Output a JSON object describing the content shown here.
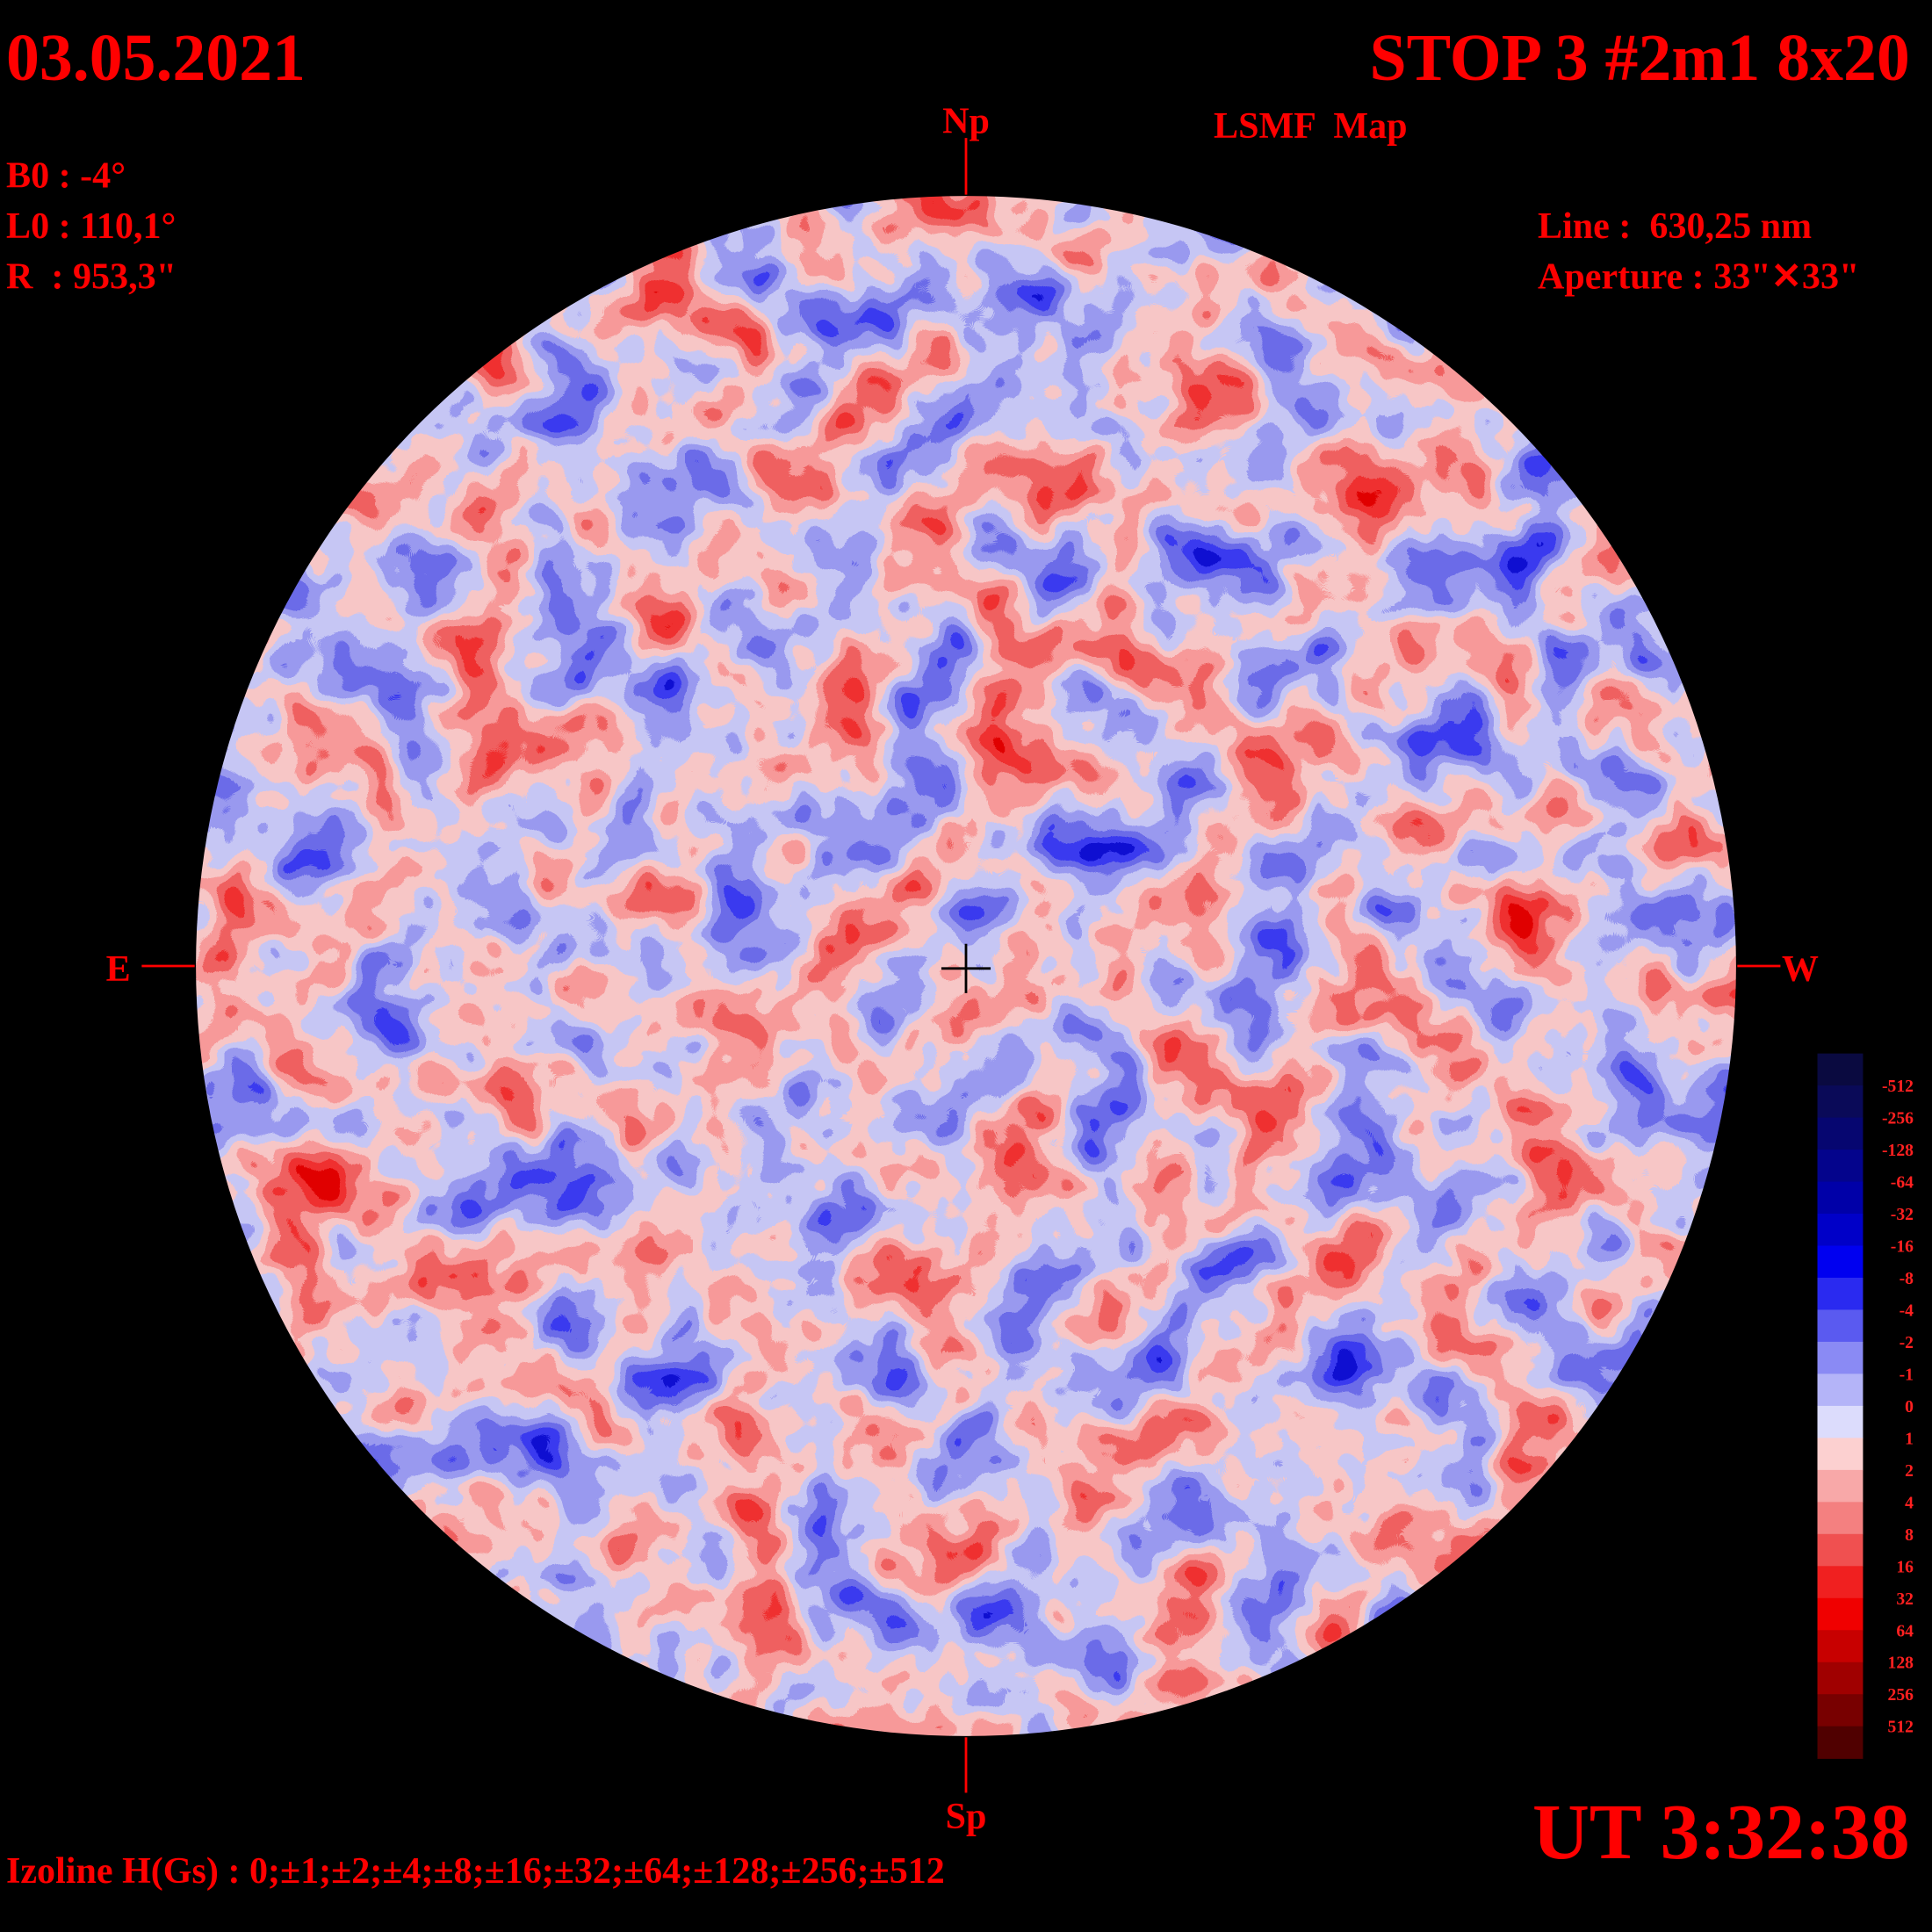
{
  "header": {
    "date": "03.05.2021",
    "title": "STOP 3 #2m1 8x20",
    "subtitle": "LSMF  Map"
  },
  "parameters": [
    "B0 : -4°",
    "L0 : 110,1°",
    "R  : 953,3\""
  ],
  "instrument": [
    "Line :  630,25 nm",
    "Aperture : 33\"✕33\""
  ],
  "directions": {
    "north": "Np",
    "south": "Sp",
    "east": "E",
    "west": "W"
  },
  "time": "UT 3:32:38",
  "isolines": "Izoline H(Gs) : 0;±1;±2;±4;±8;±16;±32;±64;±128;±256;±512",
  "colorbar": {
    "labels": [
      "-512",
      "-256",
      "-128",
      "-64",
      "-32",
      "-16",
      "-8",
      "-4",
      "-2",
      "-1",
      "0",
      "1",
      "2",
      "4",
      "8",
      "16",
      "32",
      "64",
      "128",
      "256",
      "512"
    ],
    "colors": [
      "#0a0a40",
      "#0a0a58",
      "#060670",
      "#04048c",
      "#0000a8",
      "#0000c8",
      "#0000f0",
      "#2a2af0",
      "#5a5af0",
      "#8a8af4",
      "#b4b4f8",
      "#dcdcfc",
      "#fcd0d0",
      "#f8a8a8",
      "#f48080",
      "#f05050",
      "#f02020",
      "#f00000",
      "#c80000",
      "#a00000",
      "#780000",
      "#500000"
    ]
  }
}
